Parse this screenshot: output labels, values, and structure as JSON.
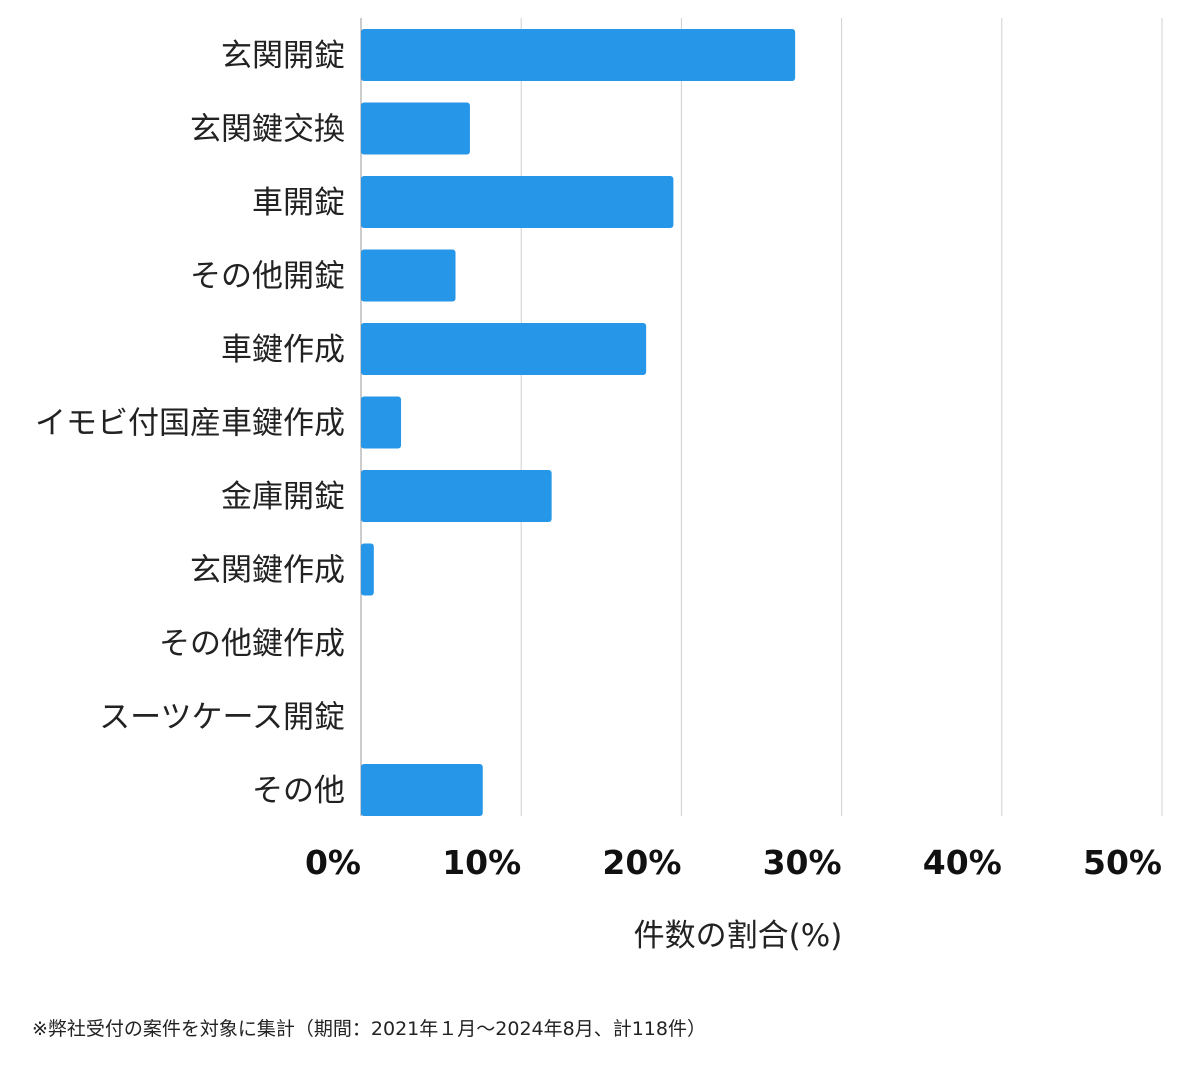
{
  "chart_data": {
    "type": "bar",
    "orientation": "horizontal",
    "categories": [
      "玄関開錠",
      "玄関鍵交換",
      "車開錠",
      "その他開錠",
      "車鍵作成",
      "イモビ付国産車鍵作成",
      "金庫開錠",
      "玄関鍵作成",
      "その他鍵作成",
      "スーツケース開錠",
      "その他"
    ],
    "values": [
      27.1,
      6.8,
      19.5,
      5.9,
      17.8,
      2.5,
      11.9,
      0.8,
      0,
      0,
      7.6
    ],
    "xticks": [
      "0%",
      "10%",
      "20%",
      "30%",
      "40%",
      "50%"
    ],
    "xlim": [
      0,
      50
    ],
    "xlabel": "件数の割合(%)",
    "grid": "vertical",
    "bar_color": "#2596e8",
    "grid_color": "#d0d0d0"
  },
  "footnote": "※弊社受付の案件を対象に集計（期間：2021年１月〜2024年8月、計118件）"
}
